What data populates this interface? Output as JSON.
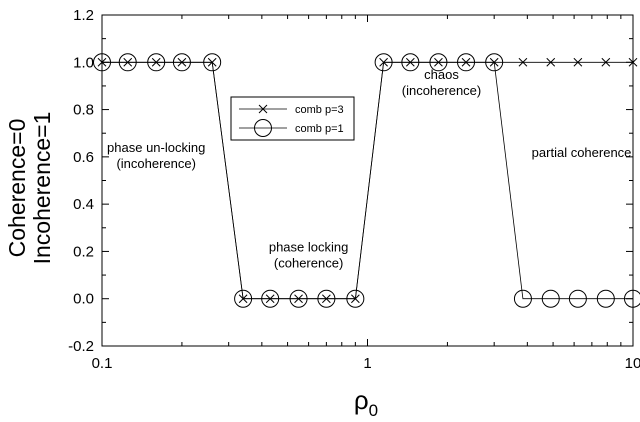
{
  "chart_data": {
    "type": "line",
    "title": "",
    "xlabel": "ρ",
    "xlabel_sub": "0",
    "ylabel_lines": [
      "Coherence=0",
      "Incoherence=1"
    ],
    "x_scale": "log",
    "xlim": [
      0.1,
      10
    ],
    "ylim": [
      -0.2,
      1.2
    ],
    "x_ticks": [
      0.1,
      1,
      10
    ],
    "x_tick_labels": [
      "0.1",
      "1",
      "10"
    ],
    "y_ticks": [
      -0.2,
      0.0,
      0.2,
      0.4,
      0.6,
      0.8,
      1.0,
      1.2
    ],
    "y_tick_labels": [
      "-0.2",
      "0.0",
      "0.2",
      "0.4",
      "0.6",
      "0.8",
      "1.0",
      "1.2"
    ],
    "grid": false,
    "legend_position": "center",
    "series": [
      {
        "name": "comb p=3",
        "marker": "x",
        "x": [
          0.1,
          0.125,
          0.16,
          0.2,
          0.26,
          0.34,
          0.43,
          0.55,
          0.7,
          0.9,
          1.15,
          1.45,
          1.85,
          2.35,
          3.0,
          3.85,
          4.9,
          6.2,
          7.9,
          10.0
        ],
        "y": [
          1,
          1,
          1,
          1,
          1,
          0,
          0,
          0,
          0,
          0,
          1,
          1,
          1,
          1,
          1,
          1,
          1,
          1,
          1,
          1
        ]
      },
      {
        "name": "comb p=1",
        "marker": "circle",
        "x": [
          0.1,
          0.125,
          0.16,
          0.2,
          0.26,
          0.34,
          0.43,
          0.55,
          0.7,
          0.9,
          1.15,
          1.45,
          1.85,
          2.35,
          3.0,
          3.85,
          4.9,
          6.2,
          7.9,
          10.0
        ],
        "y": [
          1,
          1,
          1,
          1,
          1,
          0,
          0,
          0,
          0,
          0,
          1,
          1,
          1,
          1,
          1,
          0,
          0,
          0,
          0,
          0
        ]
      }
    ],
    "annotations": [
      {
        "lines": [
          "phase un-locking",
          "(incoherence)"
        ],
        "x": 0.16,
        "y": 0.62
      },
      {
        "lines": [
          "phase locking",
          "(coherence)"
        ],
        "x": 0.6,
        "y": 0.2
      },
      {
        "lines": [
          "chaos",
          "(incoherence)"
        ],
        "x": 1.9,
        "y": 0.93
      },
      {
        "lines": [
          "partial coherence"
        ],
        "x": 6.4,
        "y": 0.6
      }
    ]
  }
}
